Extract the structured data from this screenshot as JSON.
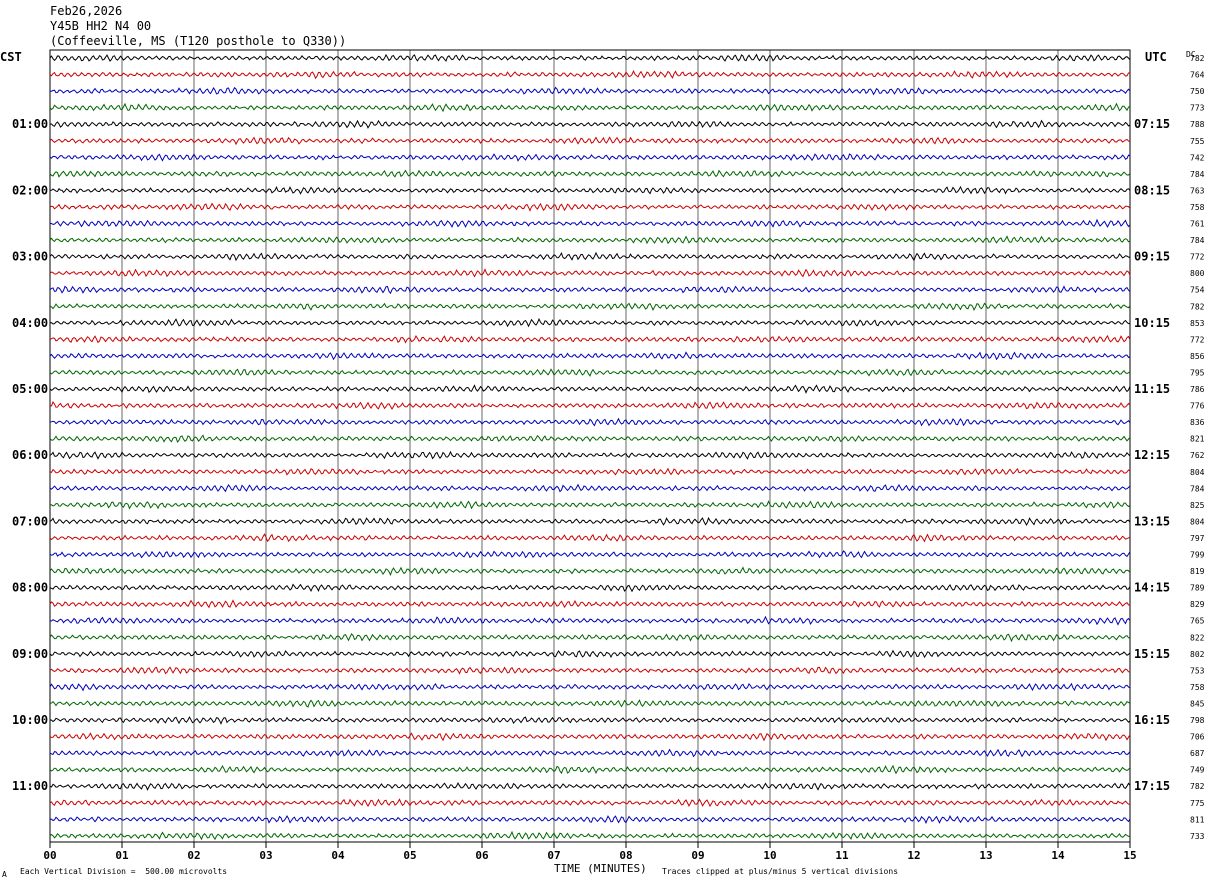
{
  "header": {
    "date": "Feb26,2026",
    "station": "Y45B HH2 N4 00",
    "location": "(Coffeeville, MS (T120 posthole to Q330))"
  },
  "left_tz": "CST",
  "right_tz": "UTC",
  "dc_label": "DC",
  "footer": {
    "scale_note": "Each Vertical Division =  500.00 microvolts",
    "x_title": "TIME (MINUTES)",
    "clip_note": "Traces clipped at plus/minus 5 vertical divisions",
    "corner_mark": "A"
  },
  "colors": {
    "trace_cycle": [
      "#000000",
      "#cc0000",
      "#0000bb",
      "#006600"
    ],
    "grid": "#000000"
  },
  "chart_data": {
    "type": "line",
    "title": "Feb26,2026 Y45B HH2 N4 00",
    "xlabel": "TIME (MINUTES)",
    "xlim": [
      0,
      15
    ],
    "x_ticks": [
      "00",
      "01",
      "02",
      "03",
      "04",
      "05",
      "06",
      "07",
      "08",
      "09",
      "10",
      "11",
      "12",
      "13",
      "14",
      "15"
    ],
    "rows_per_hour": 4,
    "left_hour_labels": [
      "01:00",
      "02:00",
      "03:00",
      "04:00",
      "05:00",
      "06:00",
      "07:00",
      "08:00",
      "09:00",
      "10:00",
      "11:00"
    ],
    "right_hour_labels": [
      "07:15",
      "08:15",
      "09:15",
      "10:15",
      "11:15",
      "12:15",
      "13:15",
      "14:15",
      "15:15",
      "16:15",
      "17:15"
    ],
    "dc_values": [
      "782",
      "764",
      "750",
      "773",
      "788",
      "755",
      "742",
      "784",
      "763",
      "758",
      "761",
      "784",
      "772",
      "800",
      "754",
      "782",
      "853",
      "772",
      "856",
      "795",
      "786",
      "776",
      "836",
      "821",
      "762",
      "804",
      "784",
      "825",
      "804",
      "797",
      "799",
      "819",
      "789",
      "829",
      "765",
      "822",
      "802",
      "753",
      "758",
      "845",
      "798",
      "706",
      "687",
      "749",
      "782",
      "775",
      "811",
      "733"
    ],
    "grid": true
  }
}
